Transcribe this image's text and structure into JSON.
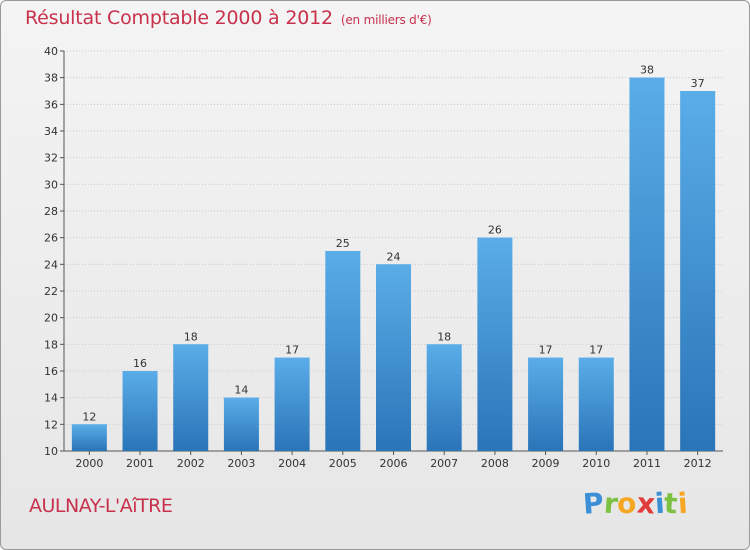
{
  "header": {
    "title": "Résultat Comptable 2000 à 2012",
    "subtitle": "(en milliers d'€)"
  },
  "footer": {
    "commune": "AULNAY-L'AîTRE",
    "logo_letters": [
      "P",
      "r",
      "o",
      "x",
      "i",
      "t",
      "i"
    ],
    "logo_colors": [
      "#3a8fd6",
      "#7cc142",
      "#f5a623",
      "#e23b3b",
      "#3a8fd6",
      "#7cc142",
      "#f5a623"
    ]
  },
  "colors": {
    "bar": "#3d94d9",
    "bar_light": "#5aade8",
    "bar_dark": "#2a74b8",
    "title": "#c8314c"
  },
  "chart_data": {
    "type": "bar",
    "title": "Résultat Comptable 2000 à 2012",
    "subtitle": "(en milliers d'€)",
    "categories": [
      "2000",
      "2001",
      "2002",
      "2003",
      "2004",
      "2005",
      "2006",
      "2007",
      "2008",
      "2009",
      "2010",
      "2011",
      "2012"
    ],
    "values": [
      12,
      16,
      18,
      14,
      17,
      25,
      24,
      18,
      26,
      17,
      17,
      38,
      37
    ],
    "ylim": [
      10,
      40
    ],
    "yticks": [
      10,
      12,
      14,
      16,
      18,
      20,
      22,
      24,
      26,
      28,
      30,
      32,
      34,
      36,
      38,
      40
    ],
    "grid": true,
    "data_labels": true
  }
}
